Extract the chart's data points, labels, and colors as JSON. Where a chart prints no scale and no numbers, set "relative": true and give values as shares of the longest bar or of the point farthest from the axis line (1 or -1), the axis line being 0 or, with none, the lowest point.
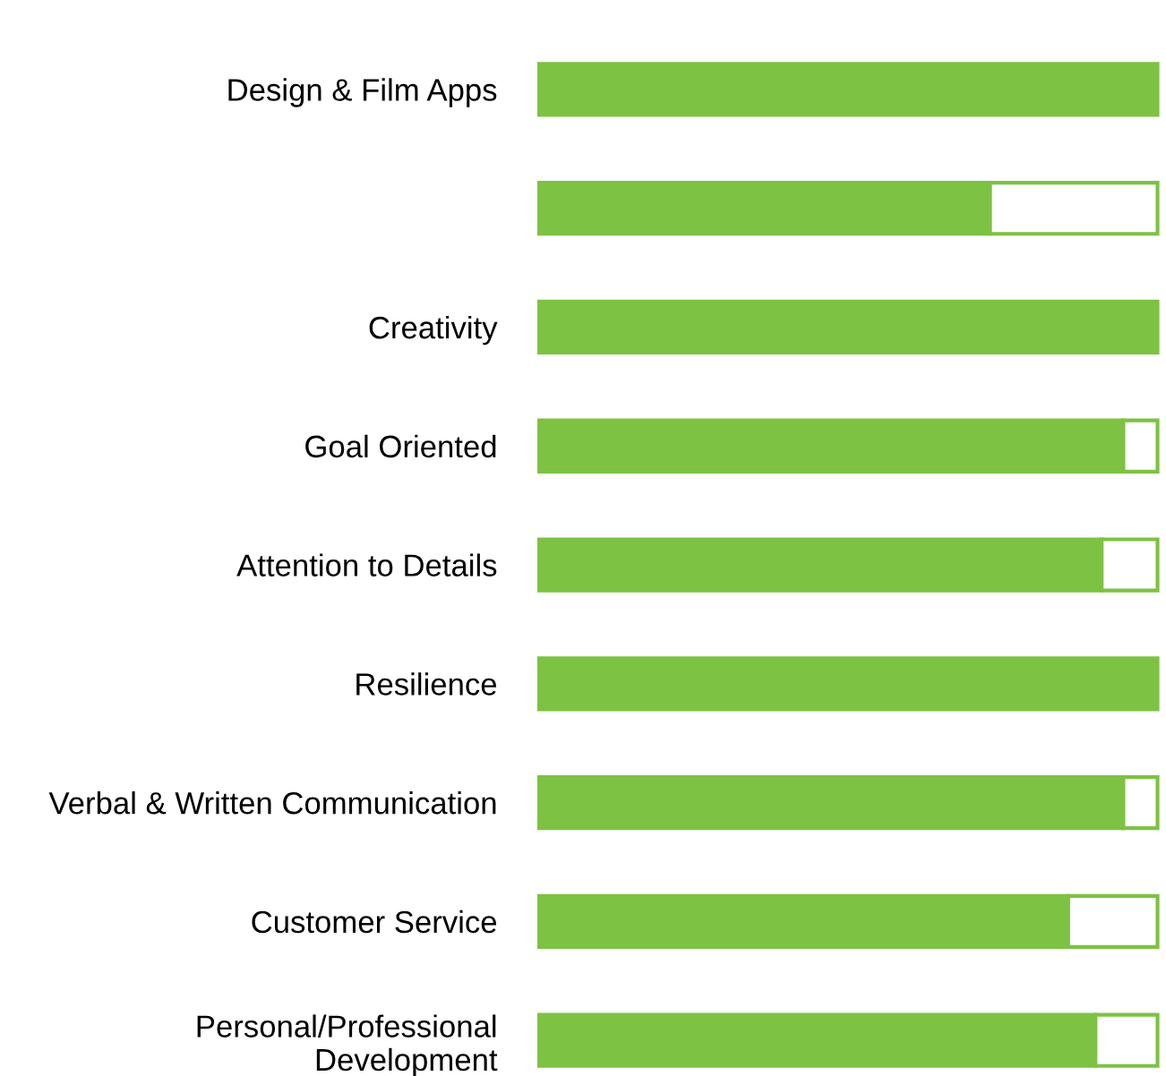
{
  "chart_data": {
    "type": "bar",
    "orientation": "horizontal",
    "stacked": true,
    "relative": true,
    "categories": [
      "Design & Film Apps",
      null,
      "Creativity",
      "Goal Oriented",
      "Attention to Details",
      "Resilience",
      "Verbal & Written Communication",
      "Customer Service",
      "Personal/Professional\nDevelopment"
    ],
    "series": [
      {
        "color": "#7dc242",
        "values": [
          1,
          0.73,
          1,
          0.945,
          0.91,
          1,
          0.945,
          0.856,
          0.9
        ]
      },
      {
        "color": "#ffffff",
        "values": [
          null,
          0.27,
          null,
          0.055,
          0.09,
          null,
          0.055,
          0.144,
          0.1
        ]
      }
    ],
    "legend": false,
    "grid": false
  }
}
